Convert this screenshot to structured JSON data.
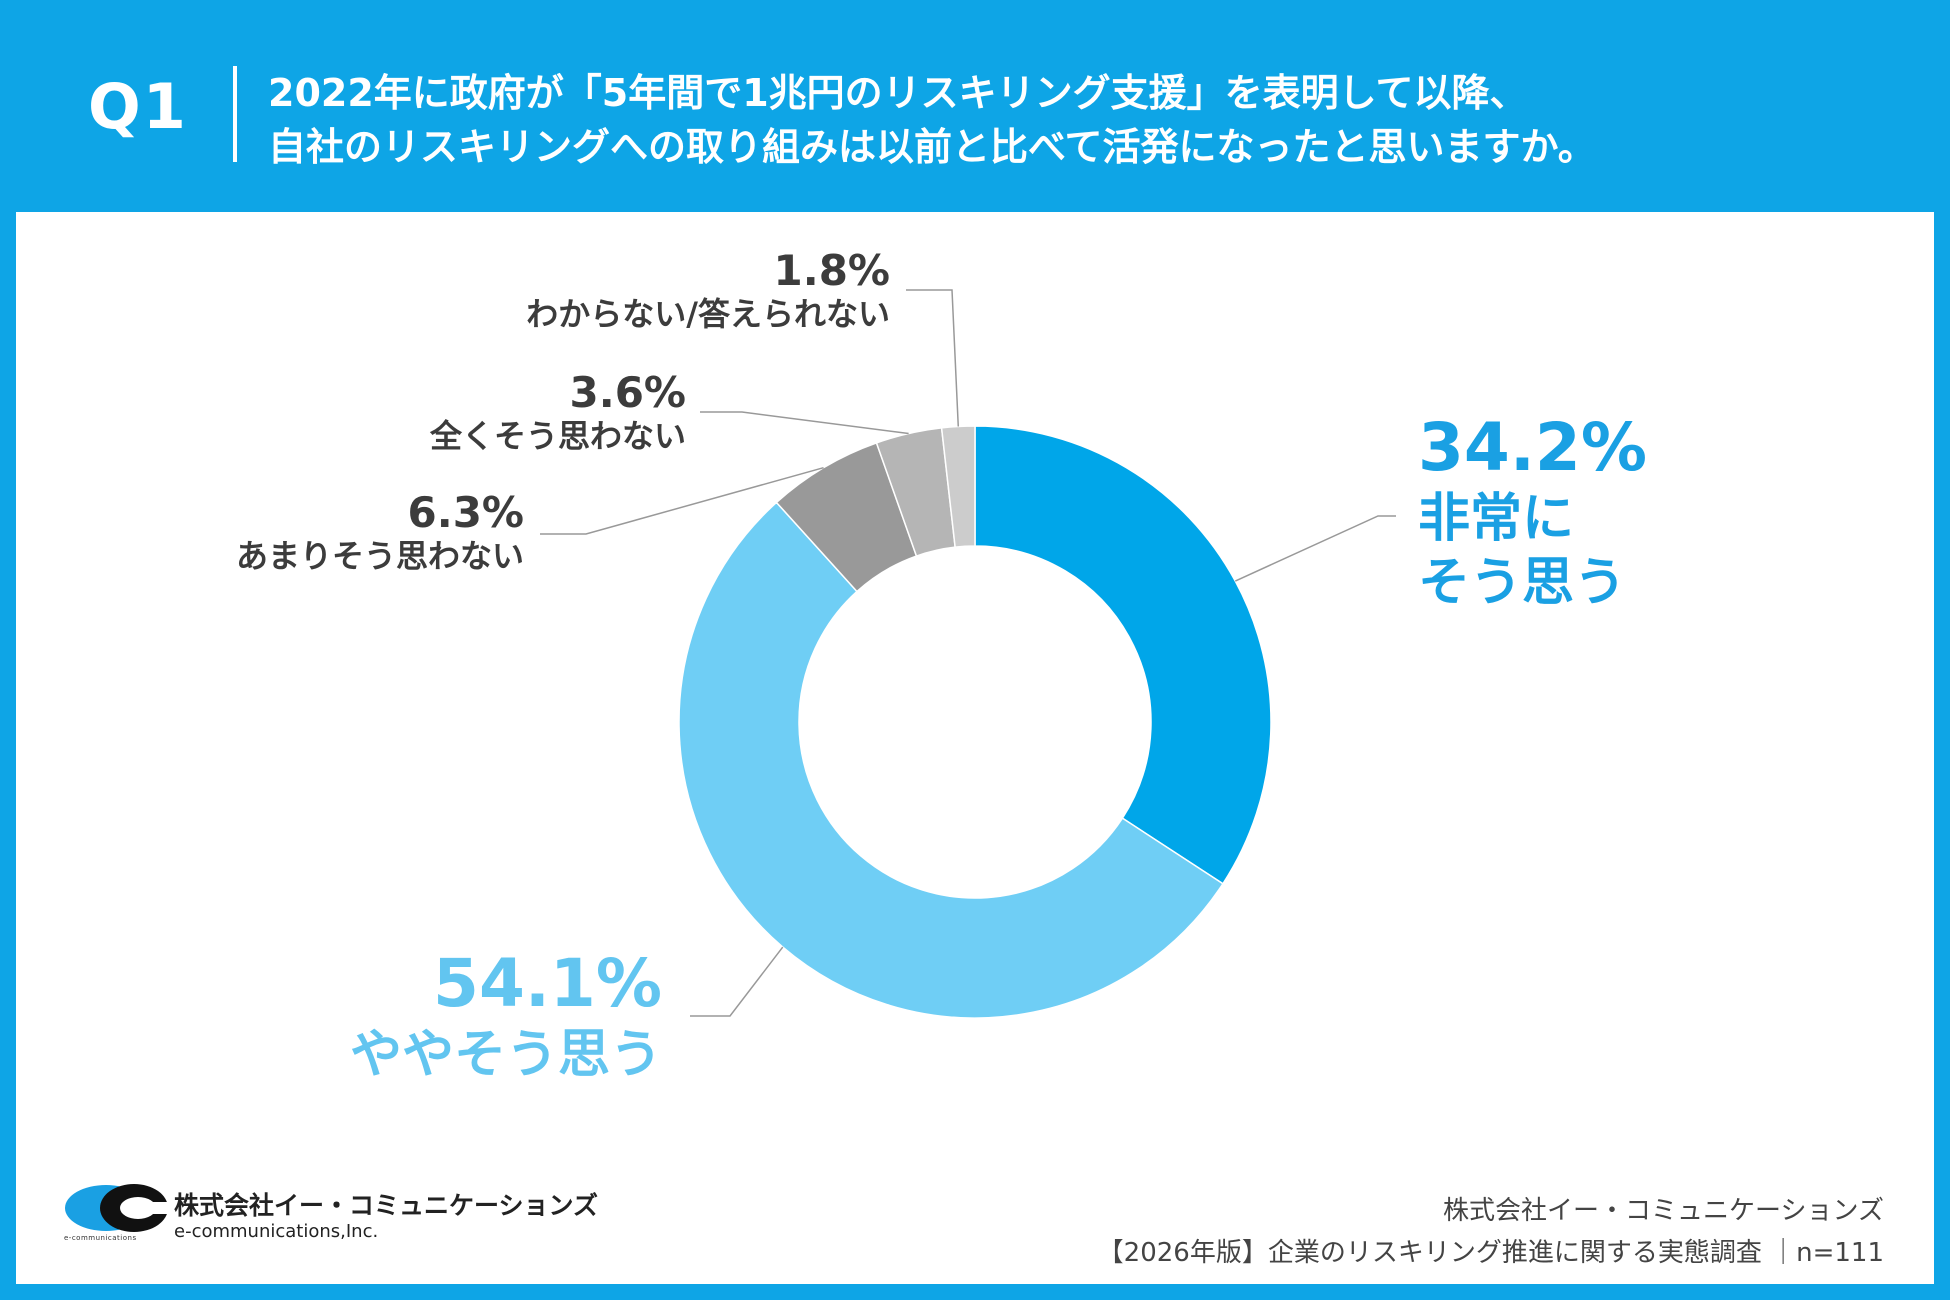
{
  "header": {
    "q_label": "Q1",
    "question_line1": "2022年に政府が「5年間で1兆円のリスキリング支援」を表明して以降、",
    "question_line2": "自社のリスキリングへの取り組みは以前と比べて活発になったと思いますか。"
  },
  "chart_data": {
    "type": "pie",
    "donut": true,
    "start_angle_deg": 0,
    "direction": "clockwise",
    "slices": [
      {
        "label_lines": [
          "非常に",
          "そう思う"
        ],
        "value": 34.2,
        "value_text": "34.2%",
        "color": "#00a6e9",
        "label_color": "#1aa0e3"
      },
      {
        "label_lines": [
          "ややそう思う"
        ],
        "value": 54.1,
        "value_text": "54.1%",
        "color": "#6fcef5",
        "label_color": "#62c5f0"
      },
      {
        "label_lines": [
          "あまりそう思わない"
        ],
        "value": 6.3,
        "value_text": "6.3%",
        "color": "#999999",
        "label_color": "#3c3c3c"
      },
      {
        "label_lines": [
          "全くそう思わない"
        ],
        "value": 3.6,
        "value_text": "3.6%",
        "color": "#b5b5b5",
        "label_color": "#3c3c3c"
      },
      {
        "label_lines": [
          "わからない/答えられない"
        ],
        "value": 1.8,
        "value_text": "1.8%",
        "color": "#cccccc",
        "label_color": "#3c3c3c"
      }
    ]
  },
  "footer": {
    "company": "株式会社イー・コミュニケーションズ",
    "survey": "【2026年版】企業のリスキリング推進に関する実態調査 ｜n=111",
    "logo_name": "株式会社イー・コミュニケーションズ",
    "logo_en": "e-communications,Inc.",
    "logo_small": "e-communications"
  },
  "colors": {
    "brand_blue": "#0ea5e6",
    "text_dark": "#3c3c3c",
    "leader_line": "#999999"
  }
}
